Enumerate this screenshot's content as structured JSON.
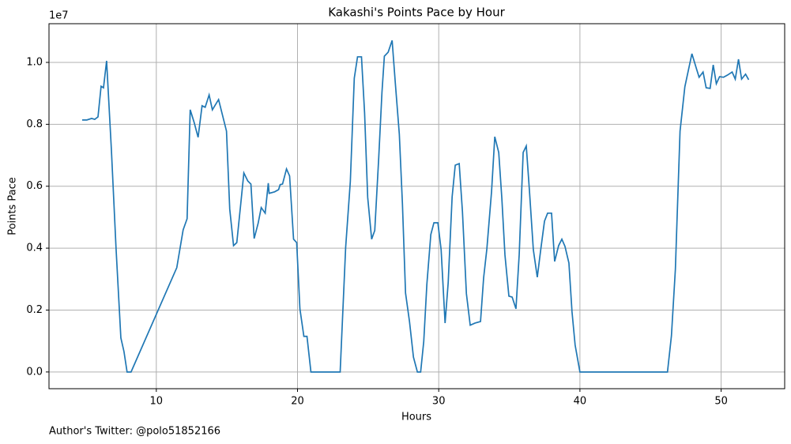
{
  "chart_data": {
    "type": "line",
    "title": "Kakashi's Points Pace by Hour",
    "x_label": "Hours",
    "y_label": "Points Pace",
    "y_offset_label": "1e7",
    "footnote": "Author's Twitter: @polo51852166",
    "grid": true,
    "xlim": [
      2.4,
      54.5
    ],
    "ylim": [
      -0.054,
      1.125
    ],
    "xticks": [
      10,
      20,
      30,
      40,
      50
    ],
    "yticks": [
      {
        "value": 0,
        "label": "0.0"
      },
      {
        "value": 0.2,
        "label": "0.2"
      },
      {
        "value": 0.4,
        "label": "0.4"
      },
      {
        "value": 0.6,
        "label": "0.6"
      },
      {
        "value": 0.8,
        "label": "0.8"
      },
      {
        "value": 1.0,
        "label": "1.0"
      }
    ],
    "x": [
      4.75,
      5.08,
      5.42,
      5.64,
      5.87,
      6.09,
      6.26,
      6.48,
      6.82,
      7.15,
      7.49,
      7.71,
      7.93,
      8.21,
      11.45,
      11.9,
      12.18,
      12.4,
      12.68,
      12.96,
      13.24,
      13.46,
      13.74,
      13.97,
      14.41,
      14.97,
      15.2,
      15.47,
      15.7,
      15.98,
      16.2,
      16.48,
      16.7,
      16.93,
      17.21,
      17.43,
      17.71,
      17.93,
      17.99,
      18.38,
      18.66,
      18.77,
      18.94,
      19.22,
      19.44,
      19.72,
      19.94,
      20.17,
      20.45,
      20.67,
      20.95,
      23.02,
      23.41,
      23.74,
      24.02,
      24.25,
      24.53,
      24.75,
      24.97,
      25.25,
      25.47,
      25.75,
      25.98,
      26.15,
      26.42,
      26.7,
      26.93,
      27.21,
      27.43,
      27.65,
      27.93,
      28.21,
      28.49,
      28.72,
      28.94,
      29.16,
      29.44,
      29.66,
      29.94,
      30.17,
      30.45,
      30.67,
      30.95,
      31.17,
      31.45,
      31.68,
      31.96,
      32.23,
      32.57,
      32.96,
      33.18,
      33.41,
      33.74,
      33.97,
      34.25,
      34.47,
      34.69,
      34.97,
      35.2,
      35.47,
      35.7,
      35.98,
      36.2,
      36.42,
      36.7,
      36.98,
      37.21,
      37.49,
      37.71,
      37.99,
      38.21,
      38.49,
      38.72,
      38.94,
      39.22,
      39.44,
      39.66,
      40.0,
      46.2,
      46.48,
      46.76,
      46.87,
      47.09,
      47.43,
      47.93,
      48.27,
      48.44,
      48.72,
      48.94,
      49.22,
      49.44,
      49.66,
      49.89,
      50.17,
      50.45,
      50.78,
      51.0,
      51.23,
      51.45,
      51.73,
      51.95
    ],
    "series": [
      {
        "name": "Points Pace",
        "color": "#1f77b4",
        "values": [
          0.814,
          0.814,
          0.819,
          0.816,
          0.824,
          0.923,
          0.918,
          1.005,
          0.717,
          0.398,
          0.11,
          0.066,
          0,
          0,
          0.337,
          0.459,
          0.495,
          0.847,
          0.806,
          0.758,
          0.86,
          0.855,
          0.895,
          0.847,
          0.88,
          0.778,
          0.526,
          0.408,
          0.418,
          0.543,
          0.643,
          0.617,
          0.607,
          0.431,
          0.48,
          0.531,
          0.513,
          0.61,
          0.577,
          0.582,
          0.589,
          0.605,
          0.607,
          0.656,
          0.633,
          0.429,
          0.418,
          0.204,
          0.115,
          0.115,
          0,
          0,
          0.403,
          0.615,
          0.949,
          1.018,
          1.018,
          0.837,
          0.564,
          0.429,
          0.457,
          0.691,
          0.903,
          1.02,
          1.033,
          1.071,
          0.931,
          0.768,
          0.543,
          0.255,
          0.163,
          0.048,
          0,
          0,
          0.099,
          0.283,
          0.444,
          0.482,
          0.482,
          0.395,
          0.158,
          0.288,
          0.566,
          0.668,
          0.673,
          0.518,
          0.253,
          0.151,
          0.158,
          0.163,
          0.304,
          0.398,
          0.582,
          0.76,
          0.709,
          0.561,
          0.378,
          0.245,
          0.242,
          0.204,
          0.38,
          0.709,
          0.73,
          0.589,
          0.395,
          0.306,
          0.39,
          0.487,
          0.513,
          0.513,
          0.357,
          0.408,
          0.429,
          0.406,
          0.352,
          0.194,
          0.087,
          0,
          0,
          0.117,
          0.332,
          0.482,
          0.778,
          0.921,
          1.028,
          0.977,
          0.952,
          0.969,
          0.918,
          0.916,
          0.992,
          0.931,
          0.954,
          0.952,
          0.959,
          0.969,
          0.946,
          1.01,
          0.946,
          0.962,
          0.944
        ]
      }
    ]
  }
}
